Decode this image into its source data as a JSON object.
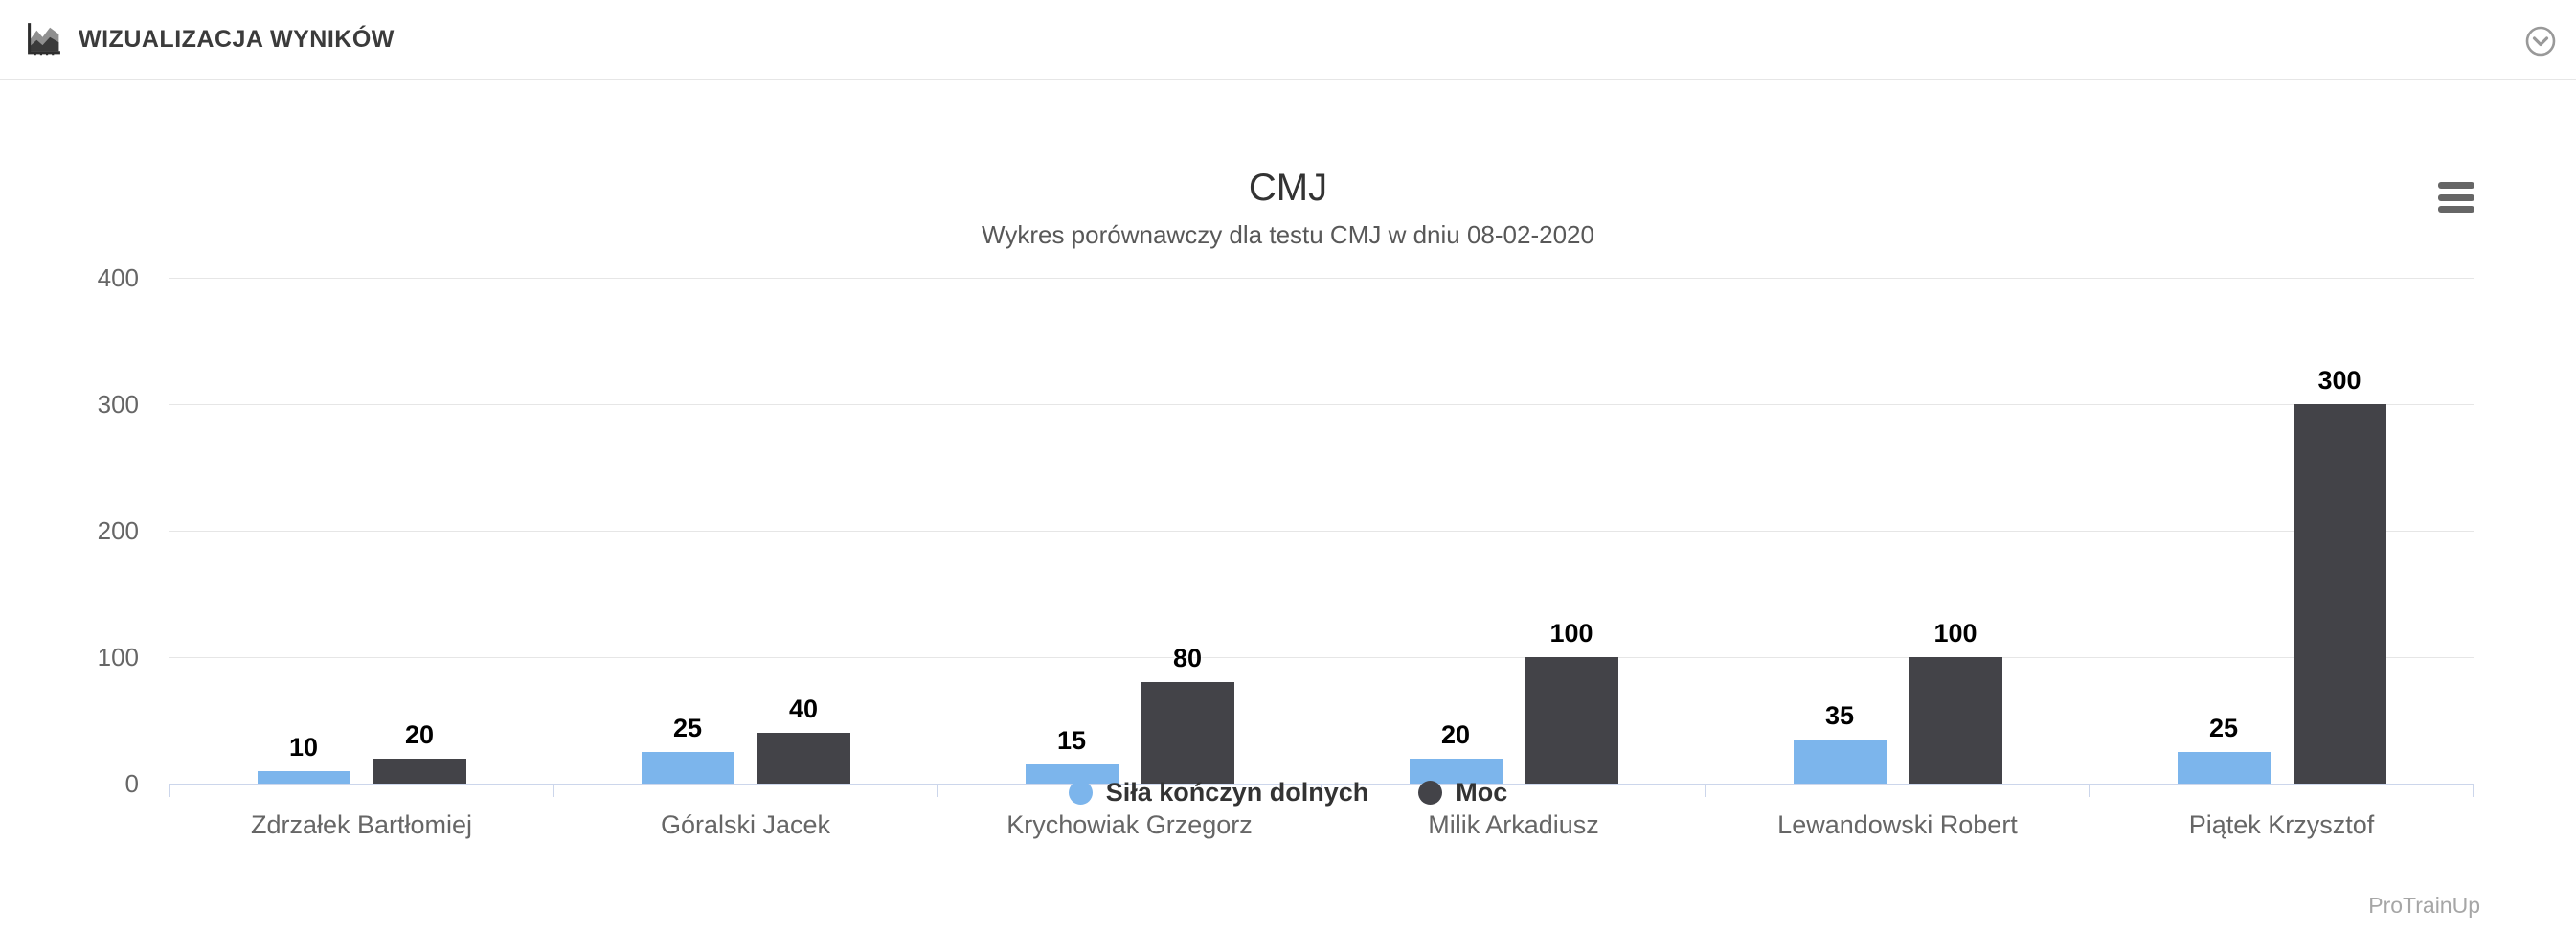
{
  "header": {
    "title": "WIZUALIZACJA WYNIKÓW"
  },
  "chart": {
    "watermark": "ProTrainUp"
  },
  "chart_data": {
    "type": "bar",
    "title": "CMJ",
    "subtitle": "Wykres porównawczy dla testu CMJ w dniu 08-02-2020",
    "categories": [
      "Zdrzałek Bartłomiej",
      "Góralski Jacek",
      "Krychowiak Grzegorz",
      "Milik Arkadiusz",
      "Lewandowski Robert",
      "Piątek Krzysztof"
    ],
    "series": [
      {
        "name": "Siła kończyn dolnych",
        "color": "#7cb5ec",
        "values": [
          10,
          25,
          15,
          20,
          35,
          25
        ]
      },
      {
        "name": "Moc",
        "color": "#434348",
        "values": [
          20,
          40,
          80,
          100,
          100,
          300
        ]
      }
    ],
    "xlabel": "",
    "ylabel": "",
    "ylim": [
      0,
      400
    ],
    "yticks": [
      0,
      100,
      200,
      300,
      400
    ],
    "grid": true,
    "legend_position": "bottom",
    "axis_line_color": "#ccd6eb",
    "grid_color": "#e6e6e6"
  }
}
